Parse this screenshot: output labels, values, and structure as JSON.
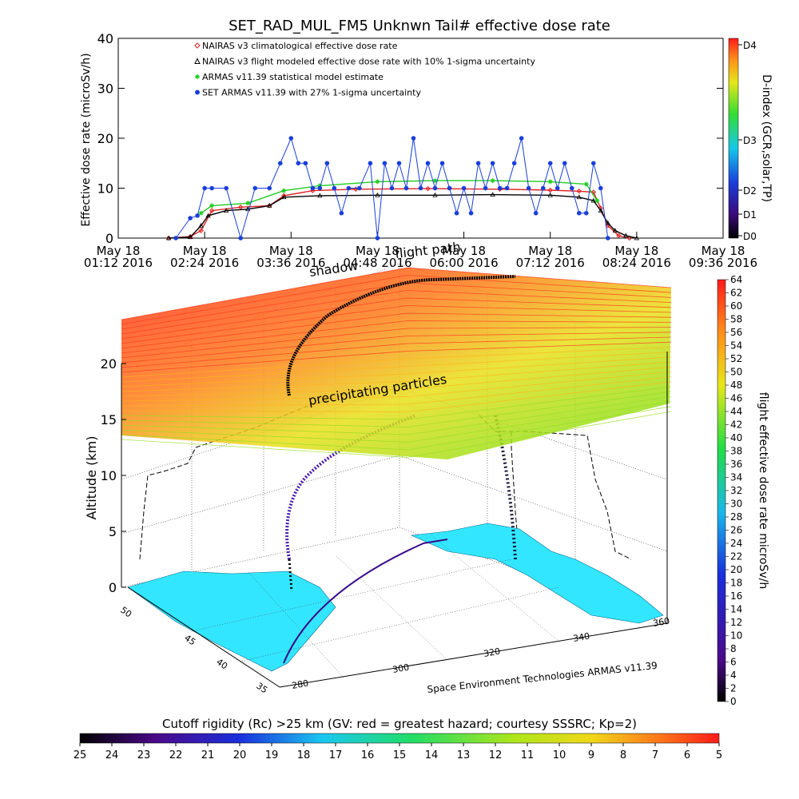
{
  "title": "SET_RAD_MUL_FM5 Unknwn Tail#  effective dose rate",
  "top_chart": {
    "ylabel": "Effective dose rate (microSv/h)",
    "right_label": "D-index (GCR,solar,TP)",
    "right_ticks": [
      "D4",
      "D3",
      "D2",
      "D1",
      "D0"
    ],
    "legend": [
      {
        "label": "NAIRAS v3 climatological effective dose rate",
        "color": "#e02020",
        "marker": "diamond"
      },
      {
        "label": "NAIRAS v3 flight modeled effective dose rate with 10% 1-sigma uncertainty",
        "color": "#000000",
        "marker": "triangle"
      },
      {
        "label": "ARMAS v11.39 statistical model estimate",
        "color": "#22cc22",
        "marker": "asterisk"
      },
      {
        "label": "SET ARMAS v11.39 with 27% 1-sigma uncertainty",
        "color": "#1a3fdc",
        "marker": "dot"
      }
    ],
    "ytick_labels": [
      "0",
      "10",
      "20",
      "30",
      "40"
    ],
    "xtick_labels": [
      {
        "line1": "May 18",
        "line2": "01:12 2016"
      },
      {
        "line1": "May 18",
        "line2": "02:24 2016"
      },
      {
        "line1": "May 18",
        "line2": "03:36 2016"
      },
      {
        "line1": "May 18",
        "line2": "04:48 2016"
      },
      {
        "line1": "May 18",
        "line2": "06:00 2016"
      },
      {
        "line1": "May 18",
        "line2": "07:12 2016"
      },
      {
        "line1": "May 18",
        "line2": "08:24 2016"
      },
      {
        "line1": "May 18",
        "line2": "09:36 2016"
      }
    ]
  },
  "chart_data": [
    {
      "type": "line",
      "title": "SET_RAD_MUL_FM5 Unknwn Tail#  effective dose rate",
      "xlabel": "",
      "ylabel": "Effective dose rate (microSv/h)",
      "x_unit": "hours (UTC, May 18 2016)",
      "xlim": [
        1.2,
        9.6
      ],
      "ylim": [
        0,
        40
      ],
      "legend_position": "top-left",
      "series": [
        {
          "name": "NAIRAS v3 climatological effective dose rate",
          "color": "#e02020",
          "x": [
            1.9,
            2.2,
            2.35,
            2.5,
            2.9,
            3.3,
            3.5,
            3.9,
            4.5,
            5.5,
            6.5,
            7.2,
            7.6,
            7.8,
            7.9,
            8.0,
            8.15,
            8.3
          ],
          "y": [
            0,
            0.3,
            1.5,
            5.5,
            6.2,
            6.5,
            8.5,
            9.5,
            9.8,
            9.9,
            9.8,
            9.6,
            9.4,
            9.2,
            6.0,
            2.5,
            0.5,
            0
          ]
        },
        {
          "name": "NAIRAS v3 flight modeled effective dose rate with 10% 1-sigma uncertainty",
          "color": "#000000",
          "x": [
            1.9,
            2.2,
            2.35,
            2.45,
            2.7,
            3.0,
            3.3,
            3.5,
            4.0,
            4.8,
            5.6,
            6.4,
            7.2,
            7.6,
            7.8,
            7.9,
            8.0,
            8.1,
            8.25,
            8.4
          ],
          "y": [
            0,
            0.2,
            2.5,
            4.5,
            5.5,
            5.8,
            6.5,
            8.2,
            8.5,
            8.6,
            8.6,
            8.7,
            8.6,
            8.2,
            7.5,
            5.5,
            3.0,
            1.5,
            0.5,
            0
          ]
        },
        {
          "name": "ARMAS v11.39 statistical model estimate",
          "color": "#22cc22",
          "x": [
            2.35,
            2.5,
            3.0,
            3.5,
            4.0,
            4.8,
            5.6,
            6.4,
            7.2,
            7.7,
            7.85
          ],
          "y": [
            5.0,
            6.5,
            7.0,
            9.5,
            10.5,
            11.3,
            11.5,
            11.5,
            11.3,
            10.8,
            7.5
          ]
        },
        {
          "name": "SET ARMAS v11.39 with 27% 1-sigma uncertainty",
          "color": "#1a3fdc",
          "x": [
            2.0,
            2.2,
            2.3,
            2.4,
            2.5,
            2.7,
            2.9,
            3.1,
            3.3,
            3.45,
            3.6,
            3.7,
            3.8,
            3.9,
            4.0,
            4.1,
            4.2,
            4.3,
            4.4,
            4.55,
            4.7,
            4.8,
            4.9,
            5.0,
            5.1,
            5.2,
            5.3,
            5.4,
            5.5,
            5.6,
            5.7,
            5.8,
            5.9,
            6.0,
            6.1,
            6.2,
            6.3,
            6.4,
            6.5,
            6.6,
            6.7,
            6.8,
            6.9,
            7.0,
            7.1,
            7.2,
            7.3,
            7.4,
            7.5,
            7.6,
            7.7,
            7.8,
            7.9,
            8.0
          ],
          "y": [
            0,
            4,
            4.5,
            10,
            10,
            10,
            0,
            10,
            10,
            15,
            20,
            15,
            15,
            10,
            10,
            15,
            10,
            5,
            10,
            10,
            15,
            0,
            15,
            10,
            15,
            10,
            20,
            10,
            15,
            10,
            15,
            10,
            5,
            10,
            5,
            15,
            10,
            15,
            10,
            10,
            15,
            20,
            10,
            5,
            10,
            15,
            10,
            15,
            10,
            5,
            5,
            15,
            10,
            0
          ]
        }
      ]
    },
    {
      "type": "scatter",
      "title": "",
      "xlabel": "",
      "ylabel": "Altitude (km)",
      "zlim": [
        0,
        20
      ],
      "z_ticks": [
        "0",
        "5",
        "10",
        "15",
        "20"
      ],
      "annotations": [
        "shadow",
        "flight path",
        "precipitating particles"
      ],
      "longitude_ticks": [
        "280",
        "300",
        "320",
        "340",
        "360"
      ],
      "latitude_ticks": [
        "35",
        "40",
        "45",
        "50"
      ],
      "colorbar_right": {
        "label": "flight effective dose rate microSv/h",
        "min": 0,
        "max": 64,
        "step": 2
      },
      "colorbar_bottom": {
        "label": "Cutoff rigidity (Rc) >25 km (GV: red = greatest hazard; courtesy SSSRC; Kp=2)",
        "ticks": [
          "25",
          "24",
          "23",
          "22",
          "21",
          "20",
          "19",
          "18",
          "17",
          "16",
          "15",
          "14",
          "13",
          "12",
          "11",
          "10",
          "9",
          "8",
          "7",
          "6",
          "5"
        ]
      },
      "credit": "Space Environment Technologies ARMAS v11.39"
    }
  ],
  "bottom_label": "Cutoff rigidity (Rc) >25 km (GV: red = greatest hazard; courtesy SSSRC; Kp=2)",
  "credit": "Space Environment Technologies ARMAS v11.39",
  "annotations": {
    "shadow": "shadow",
    "flight_path": "flight path",
    "precip": "precipitating particles"
  }
}
